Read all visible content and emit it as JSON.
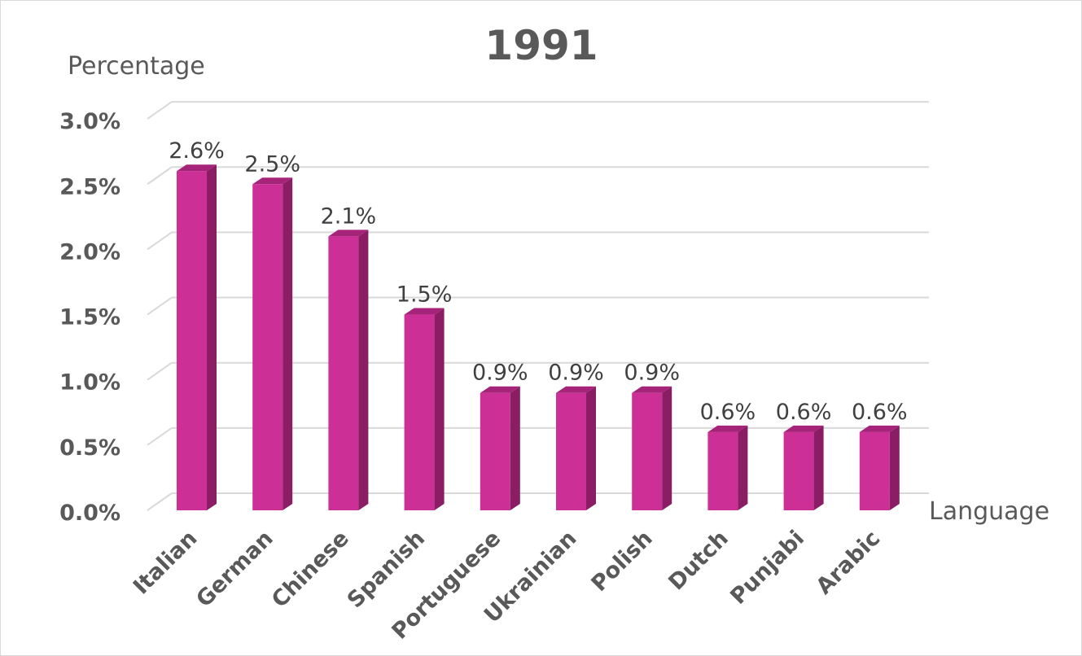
{
  "chart_data": {
    "type": "bar",
    "title": "1991",
    "xlabel": "Language",
    "ylabel": "Percentage",
    "categories": [
      "Italian",
      "German",
      "Chinese",
      "Spanish",
      "Portuguese",
      "Ukrainian",
      "Polish",
      "Dutch",
      "Punjabi",
      "Arabic"
    ],
    "values": [
      2.6,
      2.5,
      2.1,
      1.5,
      0.9,
      0.9,
      0.9,
      0.6,
      0.6,
      0.6
    ],
    "value_labels": [
      "2.6%",
      "2.5%",
      "2.1%",
      "1.5%",
      "0.9%",
      "0.9%",
      "0.9%",
      "0.6%",
      "0.6%",
      "0.6%"
    ],
    "y_ticks": [
      0,
      0.5,
      1.0,
      1.5,
      2.0,
      2.5,
      3.0
    ],
    "y_tick_labels": [
      "0.0%",
      "0.5%",
      "1.0%",
      "1.5%",
      "2.0%",
      "2.5%",
      "3.0%"
    ],
    "ylim": [
      0,
      3.0
    ],
    "grid": true,
    "style": "3d-column",
    "colors": {
      "bar_front": "#cc2f95",
      "bar_side": "#8a1d63",
      "bar_top": "#a52378",
      "grid": "#d9d9d9",
      "text": "#595959"
    }
  }
}
